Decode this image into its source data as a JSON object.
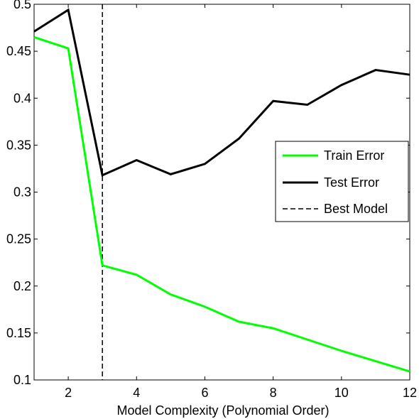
{
  "chart_data": {
    "type": "line",
    "xlabel": "Model Complexity (Polynomial Order)",
    "ylabel": "",
    "title": "",
    "xlim": [
      1,
      12
    ],
    "ylim": [
      0.1,
      0.5
    ],
    "x_ticks": [
      2,
      4,
      6,
      8,
      10,
      12
    ],
    "y_ticks": [
      0.1,
      0.15,
      0.2,
      0.25,
      0.3,
      0.35,
      0.4,
      0.45,
      0.5
    ],
    "x_tick_labels": [
      "2",
      "4",
      "6",
      "8",
      "10",
      "12"
    ],
    "y_tick_labels": [
      "0.1",
      "0.15",
      "0.2",
      "0.25",
      "0.3",
      "0.35",
      "0.4",
      "0.45",
      "0.5"
    ],
    "grid": false,
    "legend_position": "right",
    "x": [
      1,
      2,
      3,
      4,
      5,
      6,
      7,
      8,
      9,
      10,
      11,
      12
    ],
    "series": [
      {
        "name": "Train Error",
        "color": "#00ff00",
        "style": "solid",
        "values": [
          0.465,
          0.453,
          0.222,
          0.212,
          0.191,
          0.178,
          0.162,
          0.155,
          0.143,
          0.131,
          0.12,
          0.109
        ]
      },
      {
        "name": "Test Error",
        "color": "#000000",
        "style": "solid",
        "values": [
          0.471,
          0.494,
          0.318,
          0.334,
          0.319,
          0.33,
          0.357,
          0.397,
          0.393,
          0.414,
          0.43,
          0.425
        ]
      }
    ],
    "vlines": [
      {
        "name": "Best Model",
        "x": 3,
        "color": "#000000",
        "style": "dashed"
      }
    ]
  }
}
